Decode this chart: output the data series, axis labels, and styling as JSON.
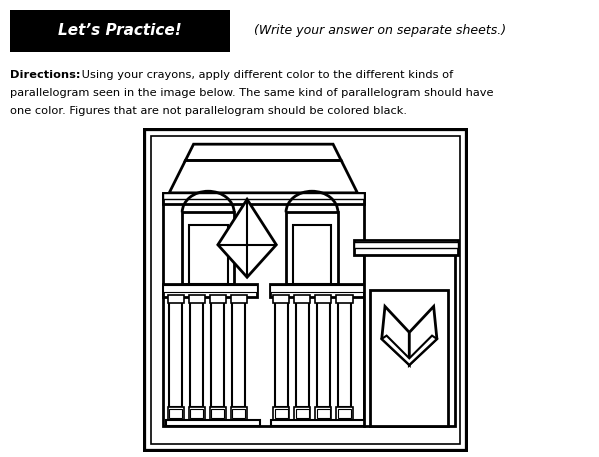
{
  "bg_color": "#ffffff",
  "line_color": "#000000",
  "fig_width": 5.99,
  "fig_height": 4.57,
  "dpi": 100,
  "title_text": "Let’s Practice!",
  "subtitle_text": "(Write your answer on separate sheets.)",
  "directions_bold": "Directions:",
  "directions_normal": " Using your crayons, apply different color to the different kinds of parallelogram seen in the image below. The same kind of parallelogram should have one color. Figures that are not parallelogram should be colored black."
}
